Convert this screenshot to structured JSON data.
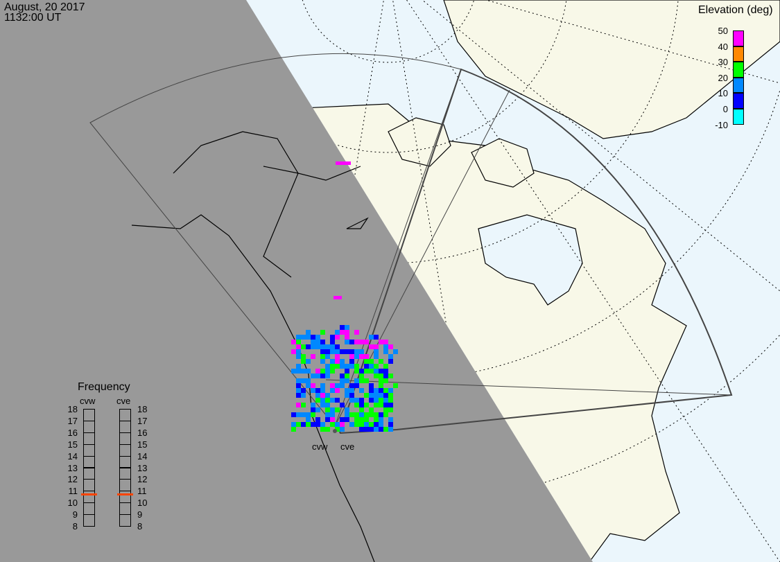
{
  "header": {
    "date": "August, 20 2017",
    "time": "1132:00 UT"
  },
  "elevation_legend": {
    "title": "Elevation (deg)",
    "ticks": [
      "50",
      "40",
      "30",
      "20",
      "10",
      "0",
      "-10"
    ],
    "colors": [
      "#ff00ff",
      "#ff8800",
      "#00ff00",
      "#0088ff",
      "#0000ff",
      "#00ffff"
    ]
  },
  "frequency_panel": {
    "title": "Frequency",
    "radars": [
      {
        "name": "cvw",
        "frequency_mhz": 10.7
      },
      {
        "name": "cve",
        "frequency_mhz": 10.7
      }
    ],
    "ticks": [
      "18",
      "17",
      "16",
      "15",
      "14",
      "13",
      "12",
      "11",
      "10",
      "9",
      "8"
    ],
    "marker_color": "#ff4400"
  },
  "map": {
    "night_color": "#999999",
    "day_ocean_color": "#ebf6fc",
    "day_land_color": "#f8f8e8",
    "radar_labels": [
      "cvw",
      "cve"
    ]
  }
}
